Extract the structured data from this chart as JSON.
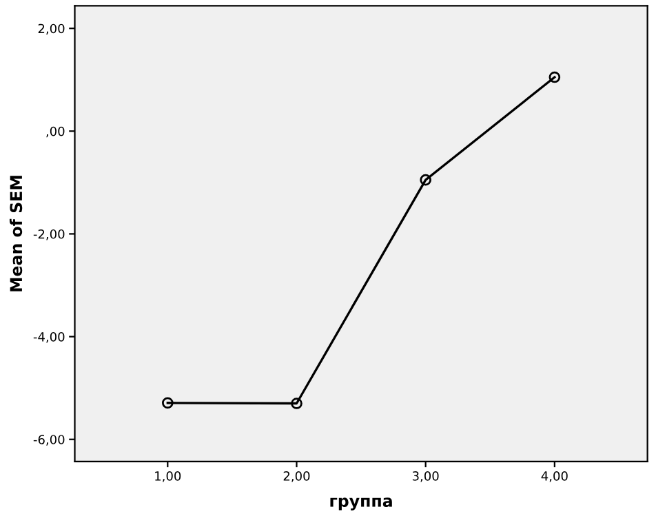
{
  "chart_data": {
    "type": "line",
    "xlabel": "группа",
    "ylabel": "Mean of SEM",
    "x": [
      1,
      2,
      3,
      4
    ],
    "series": [
      {
        "color": "#000000",
        "values": [
          -5.29,
          -5.3,
          -0.95,
          1.05
        ]
      }
    ],
    "xlim": [
      0.28,
      4.72
    ],
    "xticks": [
      {
        "value": 1,
        "label": "1,00"
      },
      {
        "value": 2,
        "label": "2,00"
      },
      {
        "value": 3,
        "label": "3,00"
      },
      {
        "value": 4,
        "label": "4,00"
      }
    ],
    "ylim": [
      -6.43,
      2.44
    ],
    "yticks": [
      {
        "value": -6,
        "label": "-6,00"
      },
      {
        "value": -4,
        "label": "-4,00"
      },
      {
        "value": -2,
        "label": "-2,00"
      },
      {
        "value": 0,
        "label": ",00"
      },
      {
        "value": 2,
        "label": "2,00"
      }
    ],
    "grid": false,
    "legend": false,
    "marker": "circle",
    "line_style": "solid"
  }
}
